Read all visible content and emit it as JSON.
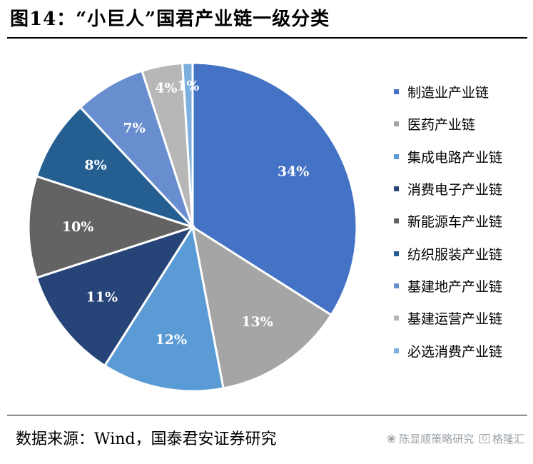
{
  "figure": {
    "title": "图14：“小巨人”国君产业链一级分类",
    "source": "数据来源：Wind，国泰君安证券研究"
  },
  "watermark": {
    "text": "陈显顺策略研究",
    "brand": "格隆汇",
    "icon": "wechat-icon"
  },
  "chart_data": {
    "type": "pie",
    "unit": "%",
    "legend_position": "right",
    "slices": [
      {
        "label": "制造业产业链",
        "value": 34,
        "display": "34%",
        "color": "#4472c4"
      },
      {
        "label": "医药产业链",
        "value": 13,
        "display": "13%",
        "color": "#a5a5a5"
      },
      {
        "label": "集成电路产业链",
        "value": 12,
        "display": "12%",
        "color": "#5b9bd5"
      },
      {
        "label": "消费电子产业链",
        "value": 11,
        "display": "11%",
        "color": "#264478"
      },
      {
        "label": "新能源车产业链",
        "value": 10,
        "display": "10%",
        "color": "#636363"
      },
      {
        "label": "纺织服装产业链",
        "value": 8,
        "display": "8%",
        "color": "#255e91"
      },
      {
        "label": "基建地产产业链",
        "value": 7,
        "display": "7%",
        "color": "#698ed0"
      },
      {
        "label": "基建运营产业链",
        "value": 4,
        "display": "4%",
        "color": "#b7b7b7"
      },
      {
        "label": "必选消费产业链",
        "value": 1,
        "display": "1%",
        "color": "#7cafdd"
      }
    ]
  }
}
